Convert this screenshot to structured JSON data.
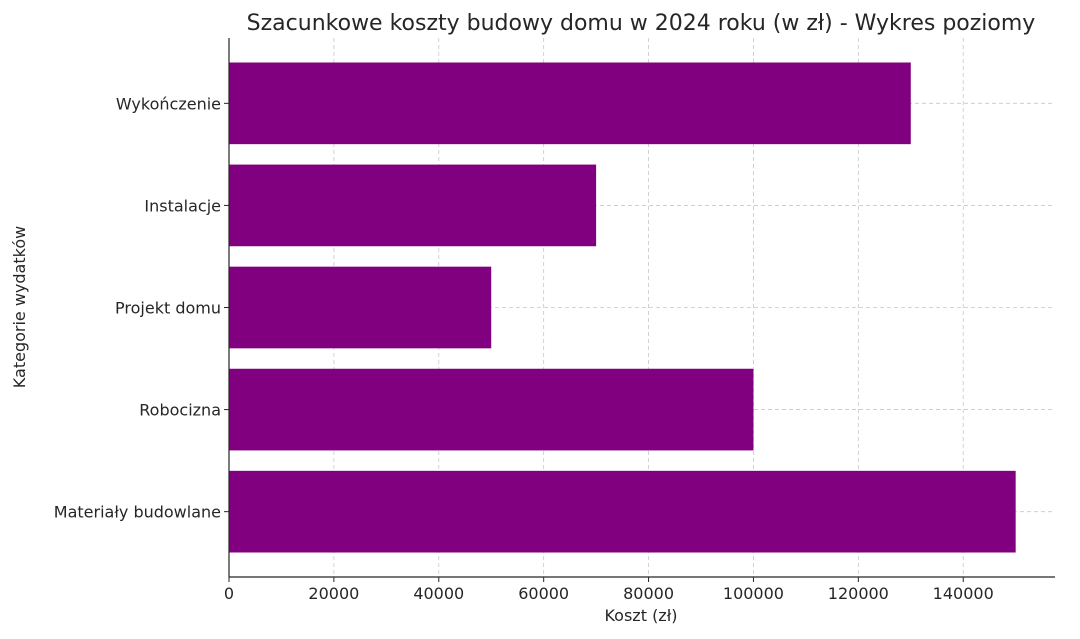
{
  "chart_data": {
    "type": "bar",
    "orientation": "horizontal",
    "title": "Szacunkowe koszty budowy domu w 2024 roku (w zł) - Wykres poziomy",
    "xlabel": "Koszt (zł)",
    "ylabel": "Kategorie wydatków",
    "categories": [
      "Materiały budowlane",
      "Robocizna",
      "Projekt domu",
      "Instalacje",
      "Wykończenie"
    ],
    "values": [
      150000,
      100000,
      50000,
      70000,
      130000
    ],
    "xlim": [
      0,
      157500
    ],
    "xticks": [
      0,
      20000,
      40000,
      60000,
      80000,
      100000,
      120000,
      140000
    ],
    "xtick_labels": [
      "0",
      "20000",
      "40000",
      "60000",
      "80000",
      "100000",
      "120000",
      "140000"
    ],
    "grid": true,
    "bar_color": "#800080"
  }
}
